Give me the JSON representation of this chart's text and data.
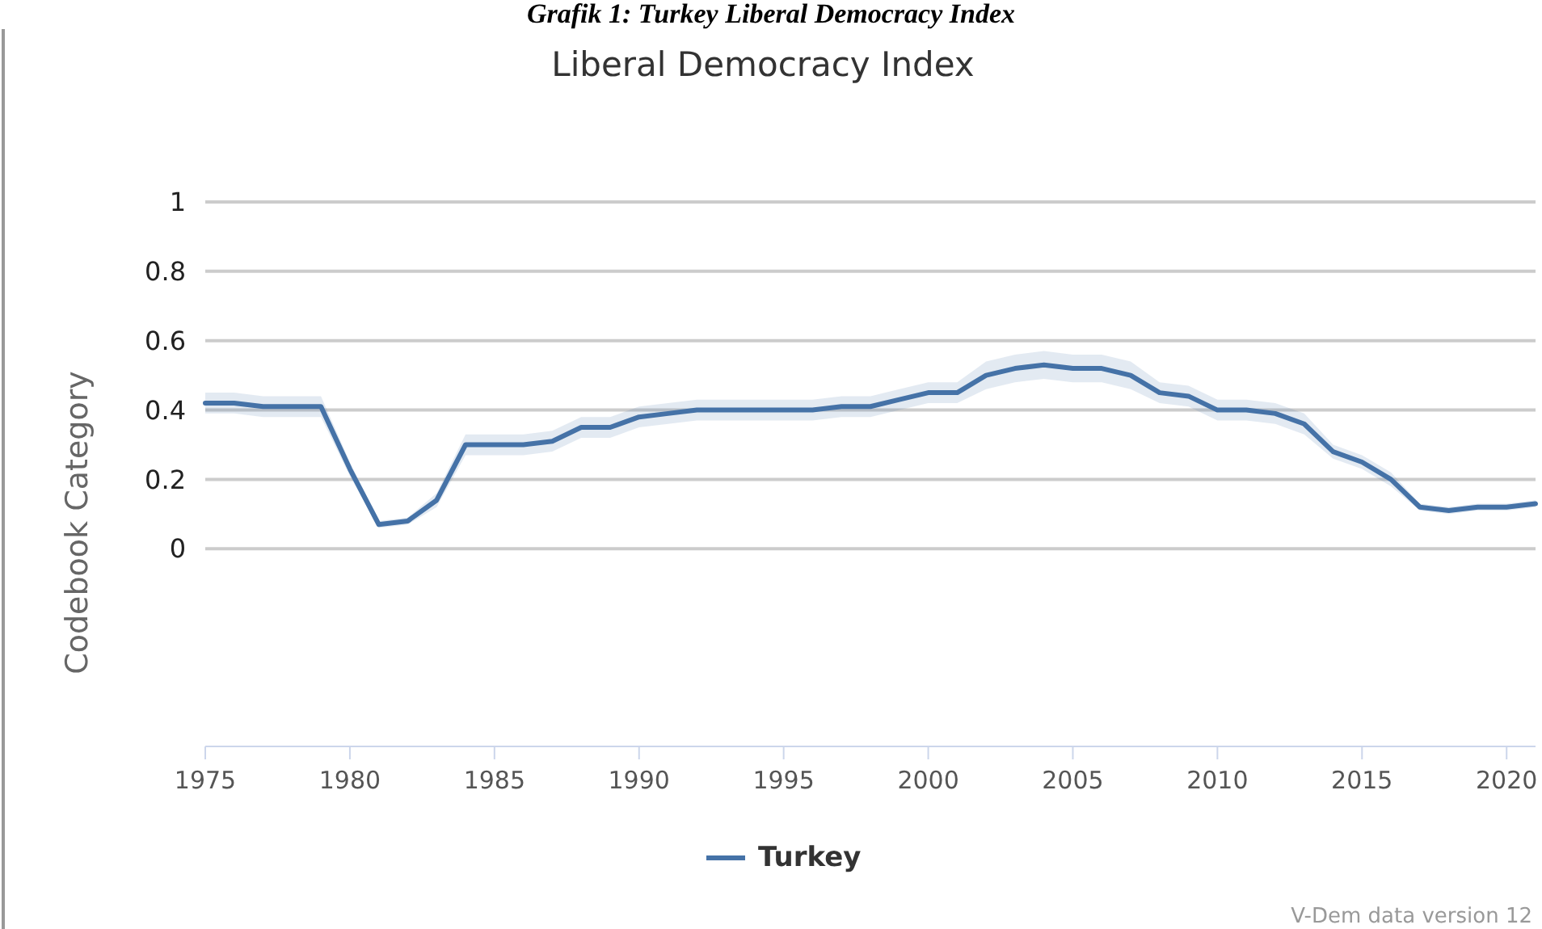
{
  "chart_data": {
    "type": "line",
    "title": "Liberal Democracy Index",
    "ylabel": "Codebook Category",
    "annotations": [
      "Grafik 1: Turkey Liberal Democracy Index",
      "V-Dem data version 12"
    ],
    "x": [
      1975,
      1976,
      1977,
      1978,
      1979,
      1980,
      1981,
      1982,
      1983,
      1984,
      1985,
      1986,
      1987,
      1988,
      1989,
      1990,
      1991,
      1992,
      1993,
      1994,
      1995,
      1996,
      1997,
      1998,
      1999,
      2000,
      2001,
      2002,
      2003,
      2004,
      2005,
      2006,
      2007,
      2008,
      2009,
      2010,
      2011,
      2012,
      2013,
      2014,
      2015,
      2016,
      2017,
      2018,
      2019,
      2020,
      2021
    ],
    "series": [
      {
        "name": "Turkey",
        "color": "#4572a7",
        "values": [
          0.42,
          0.42,
          0.41,
          0.41,
          0.41,
          0.23,
          0.07,
          0.08,
          0.14,
          0.3,
          0.3,
          0.3,
          0.31,
          0.35,
          0.35,
          0.38,
          0.39,
          0.4,
          0.4,
          0.4,
          0.4,
          0.4,
          0.41,
          0.41,
          0.43,
          0.45,
          0.45,
          0.5,
          0.52,
          0.53,
          0.52,
          0.52,
          0.5,
          0.45,
          0.44,
          0.4,
          0.4,
          0.39,
          0.36,
          0.28,
          0.25,
          0.2,
          0.12,
          0.11,
          0.12,
          0.12,
          0.13
        ],
        "lower": [
          0.39,
          0.39,
          0.38,
          0.38,
          0.38,
          0.21,
          0.06,
          0.07,
          0.12,
          0.27,
          0.27,
          0.27,
          0.28,
          0.32,
          0.32,
          0.35,
          0.36,
          0.37,
          0.37,
          0.37,
          0.37,
          0.37,
          0.38,
          0.38,
          0.4,
          0.42,
          0.42,
          0.46,
          0.48,
          0.49,
          0.48,
          0.48,
          0.46,
          0.42,
          0.41,
          0.37,
          0.37,
          0.36,
          0.33,
          0.26,
          0.23,
          0.18,
          0.11,
          0.1,
          0.11,
          0.11,
          0.12
        ],
        "upper": [
          0.45,
          0.45,
          0.44,
          0.44,
          0.44,
          0.25,
          0.08,
          0.09,
          0.16,
          0.33,
          0.33,
          0.33,
          0.34,
          0.38,
          0.38,
          0.41,
          0.42,
          0.43,
          0.43,
          0.43,
          0.43,
          0.43,
          0.44,
          0.44,
          0.46,
          0.48,
          0.48,
          0.54,
          0.56,
          0.57,
          0.56,
          0.56,
          0.54,
          0.48,
          0.47,
          0.43,
          0.43,
          0.42,
          0.39,
          0.3,
          0.27,
          0.22,
          0.13,
          0.12,
          0.13,
          0.13,
          0.14
        ]
      }
    ],
    "xlim": [
      1975,
      2021
    ],
    "xticks": [
      1975,
      1980,
      1985,
      1990,
      1995,
      2000,
      2005,
      2010,
      2015,
      2020
    ],
    "ylim": [
      -0.57,
      1
    ],
    "yticks": [
      0,
      0.2,
      0.4,
      0.6,
      0.8,
      1
    ],
    "grid": "y",
    "legend": "bottom",
    "marker": "none",
    "line_style": "solid"
  }
}
